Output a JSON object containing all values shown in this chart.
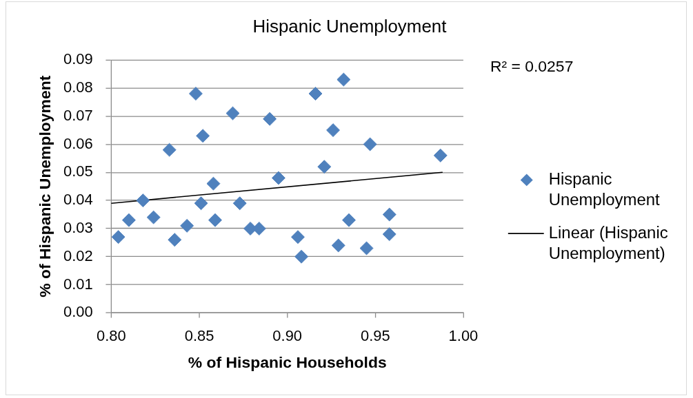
{
  "chart_data": {
    "type": "scatter",
    "title": "Hispanic Unemployment",
    "xlabel": "% of Hispanic Households",
    "ylabel": "% of Hispanic Unemployment",
    "annotations": [
      "R² = 0.0257"
    ],
    "series": [
      {
        "name": "Hispanic Unemployment",
        "type": "scatter",
        "color": "#4f81bd",
        "x": [
          0.804,
          0.81,
          0.818,
          0.824,
          0.833,
          0.836,
          0.843,
          0.848,
          0.851,
          0.852,
          0.858,
          0.859,
          0.869,
          0.873,
          0.879,
          0.884,
          0.89,
          0.895,
          0.906,
          0.908,
          0.916,
          0.921,
          0.926,
          0.929,
          0.932,
          0.935,
          0.945,
          0.947,
          0.958,
          0.958,
          0.987
        ],
        "values": [
          0.027,
          0.033,
          0.04,
          0.034,
          0.058,
          0.026,
          0.031,
          0.078,
          0.039,
          0.063,
          0.046,
          0.033,
          0.071,
          0.039,
          0.03,
          0.03,
          0.069,
          0.048,
          0.027,
          0.02,
          0.078,
          0.052,
          0.065,
          0.024,
          0.083,
          0.033,
          0.023,
          0.06,
          0.035,
          0.028,
          0.056
        ]
      },
      {
        "name": "Linear (Hispanic Unemployment)",
        "type": "line",
        "marker": "none",
        "color": "#000000",
        "x": [
          0.8,
          0.988
        ],
        "values": [
          0.039,
          0.05
        ]
      }
    ],
    "xlim": [
      0.8,
      1.0
    ],
    "ylim": [
      0,
      0.09
    ],
    "xticks": [
      {
        "value": 0.8,
        "label": "0.80"
      },
      0.85,
      {
        "value": 0.9,
        "label": "0.90"
      },
      0.95,
      {
        "value": 1,
        "label": "1.00"
      }
    ],
    "yticks": [
      {
        "value": 0,
        "label": "0.00"
      },
      0.01,
      0.02,
      0.03,
      0.04,
      0.05,
      0.06,
      0.07,
      0.08,
      0.09
    ],
    "grid": "y",
    "legend": "right",
    "marker": "diamond"
  }
}
